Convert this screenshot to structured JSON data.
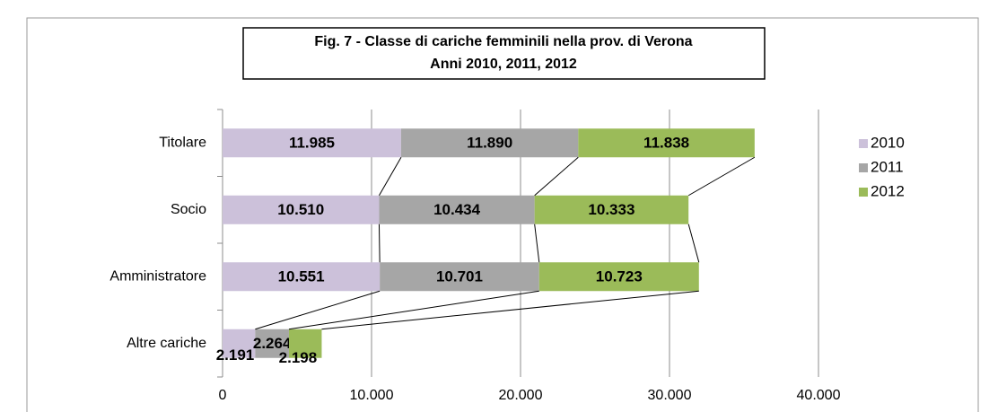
{
  "chart_data": {
    "type": "stacked-bar-horizontal",
    "title": [
      "Fig. 7 - Classe  di cariche femminili  nella prov. di Verona",
      "Anni 2010, 2011, 2012"
    ],
    "categories": [
      "Titolare",
      "Socio",
      "Amministratore",
      "Altre cariche"
    ],
    "series": [
      {
        "name": "2010",
        "color": "#ccc1da",
        "values": [
          11985,
          10510,
          10551,
          2191
        ],
        "value_labels": [
          "11.985",
          "10.510",
          "10.551",
          "2.191"
        ]
      },
      {
        "name": "2011",
        "color": "#a6a6a6",
        "values": [
          11890,
          10434,
          10701,
          2264
        ],
        "value_labels": [
          "11.890",
          "10.434",
          "10.701",
          "2.264"
        ]
      },
      {
        "name": "2012",
        "color": "#9bbb59",
        "values": [
          11838,
          10333,
          10723,
          2198
        ],
        "value_labels": [
          "11.838",
          "10.333",
          "10.723",
          "2.198"
        ]
      }
    ],
    "xlim": [
      0,
      40000
    ],
    "xticks": [
      0,
      {
        "value": 10000,
        "label": "10.000"
      },
      {
        "value": 20000,
        "label": "20.000"
      },
      {
        "value": 30000,
        "label": "30.000"
      },
      {
        "value": 40000,
        "label": "40.000"
      }
    ],
    "grid": true,
    "legend": "right"
  }
}
